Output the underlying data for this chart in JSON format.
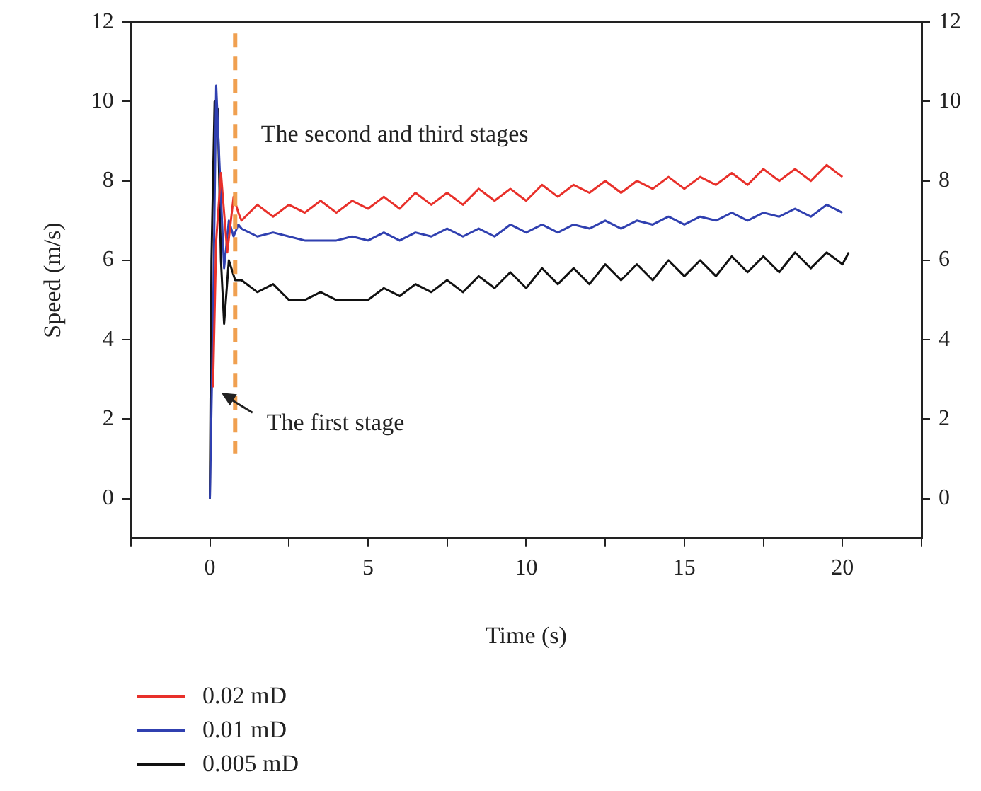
{
  "chart_data": {
    "type": "line",
    "xlabel": "Time (s)",
    "ylabel": "Speed (m/s)",
    "xlim": [
      -2.5,
      22.5
    ],
    "xticks": [
      {
        "value": -2.5,
        "label": null
      },
      0,
      {
        "value": 2.5,
        "label": null
      },
      5,
      {
        "value": 7.5,
        "label": null
      },
      10,
      {
        "value": 12.5,
        "label": null
      },
      15,
      {
        "value": 17.5,
        "label": null
      },
      20,
      {
        "value": 22.5,
        "label": null
      }
    ],
    "ylim": [
      -1,
      12
    ],
    "yticks": [
      0,
      2,
      4,
      6,
      8,
      10,
      12
    ],
    "y2lim": [
      -1,
      12
    ],
    "y2ticks": [
      0,
      2,
      4,
      6,
      8,
      10,
      12
    ],
    "grid": false,
    "legend": "bottom",
    "marker": "none",
    "line_style": "solid",
    "ref_lines": [
      {
        "axis": "x",
        "value": 0.8,
        "color": "#f0a050",
        "line_style": "dashed"
      }
    ],
    "annotations": [
      "The second and third stages",
      "The first stage"
    ],
    "series": [
      {
        "name": "0.02 mD",
        "color": "#e8302a",
        "x": [
          0.1,
          0.2,
          0.35,
          0.55,
          0.75,
          0.9,
          1,
          1.5,
          2,
          2.5,
          3,
          3.5,
          4,
          4.5,
          5,
          5.5,
          6,
          6.5,
          7,
          7.5,
          8,
          8.5,
          9,
          9.5,
          10,
          10.5,
          11,
          11.5,
          12,
          12.5,
          13,
          13.5,
          14,
          14.5,
          15,
          15.5,
          16,
          16.5,
          17,
          17.5,
          18,
          18.5,
          19,
          19.5,
          20
        ],
        "values": [
          2.8,
          6.5,
          8.2,
          6.2,
          7.6,
          7.2,
          7.0,
          7.4,
          7.1,
          7.4,
          7.2,
          7.5,
          7.2,
          7.5,
          7.3,
          7.6,
          7.3,
          7.7,
          7.4,
          7.7,
          7.4,
          7.8,
          7.5,
          7.8,
          7.5,
          7.9,
          7.6,
          7.9,
          7.7,
          8.0,
          7.7,
          8.0,
          7.8,
          8.1,
          7.8,
          8.1,
          7.9,
          8.2,
          7.9,
          8.3,
          8.0,
          8.3,
          8.0,
          8.4,
          8.1
        ]
      },
      {
        "name": "0.01 mD",
        "color": "#3040b0",
        "x": [
          0,
          0.1,
          0.2,
          0.3,
          0.45,
          0.6,
          0.75,
          0.9,
          1,
          1.5,
          2,
          2.5,
          3,
          3.5,
          4,
          4.5,
          5,
          5.5,
          6,
          6.5,
          7,
          7.5,
          8,
          8.5,
          9,
          9.5,
          10,
          10.5,
          11,
          11.5,
          12,
          12.5,
          13,
          13.5,
          14,
          14.5,
          15,
          15.5,
          16,
          16.5,
          17,
          17.5,
          18,
          18.5,
          19,
          19.5,
          20
        ],
        "values": [
          0,
          4.5,
          10.4,
          8.5,
          5.8,
          7.0,
          6.6,
          6.9,
          6.8,
          6.6,
          6.7,
          6.6,
          6.5,
          6.5,
          6.5,
          6.6,
          6.5,
          6.7,
          6.5,
          6.7,
          6.6,
          6.8,
          6.6,
          6.8,
          6.6,
          6.9,
          6.7,
          6.9,
          6.7,
          6.9,
          6.8,
          7.0,
          6.8,
          7.0,
          6.9,
          7.1,
          6.9,
          7.1,
          7.0,
          7.2,
          7.0,
          7.2,
          7.1,
          7.3,
          7.1,
          7.4,
          7.2
        ]
      },
      {
        "name": "0.005 mD",
        "color": "#111111",
        "x": [
          0,
          0.05,
          0.15,
          0.25,
          0.35,
          0.45,
          0.6,
          0.8,
          1,
          1.5,
          2,
          2.5,
          3,
          3.5,
          4,
          4.5,
          5,
          5.5,
          6,
          6.5,
          7,
          7.5,
          8,
          8.5,
          9,
          9.5,
          10,
          10.5,
          11,
          11.5,
          12,
          12.5,
          13,
          13.5,
          14,
          14.5,
          15,
          15.5,
          16,
          16.5,
          17,
          17.5,
          18,
          18.5,
          19,
          19.5,
          20,
          20.2
        ],
        "values": [
          0,
          6.0,
          10.0,
          9.8,
          6.0,
          4.4,
          6.0,
          5.5,
          5.5,
          5.2,
          5.4,
          5.0,
          5.0,
          5.2,
          5.0,
          5.0,
          5.0,
          5.3,
          5.1,
          5.4,
          5.2,
          5.5,
          5.2,
          5.6,
          5.3,
          5.7,
          5.3,
          5.8,
          5.4,
          5.8,
          5.4,
          5.9,
          5.5,
          5.9,
          5.5,
          6.0,
          5.6,
          6.0,
          5.6,
          6.1,
          5.7,
          6.1,
          5.7,
          6.2,
          5.8,
          6.2,
          5.9,
          6.2
        ]
      }
    ]
  }
}
